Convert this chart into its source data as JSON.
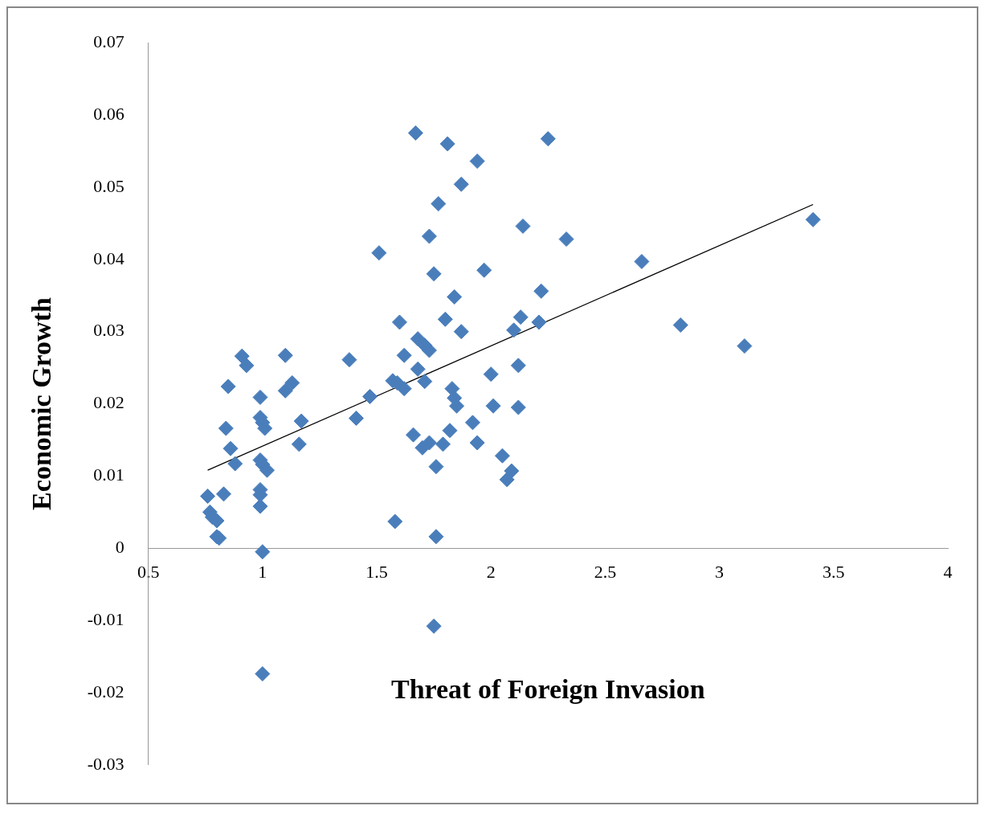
{
  "chart_data": {
    "type": "scatter",
    "xlabel": "Threat of Foreign Invasion",
    "ylabel": "Economic Growth",
    "xlim": [
      0.5,
      4
    ],
    "xticks": [
      0.5,
      1,
      1.5,
      2,
      2.5,
      3,
      3.5,
      4
    ],
    "ylim": [
      -0.03,
      0.07
    ],
    "yticks": [
      -0.03,
      -0.02,
      -0.01,
      0,
      0.01,
      0.02,
      0.03,
      0.04,
      0.05,
      0.06,
      0.07
    ],
    "grid": false,
    "legend": false,
    "series": [
      {
        "marker": "diamond",
        "color": "#4a7ebb",
        "x": [
          0.76,
          0.77,
          0.78,
          0.8,
          0.8,
          0.81,
          0.83,
          0.84,
          0.85,
          0.86,
          0.88,
          0.91,
          0.93,
          0.99,
          0.99,
          1.0,
          1.01,
          0.99,
          1.0,
          1.02,
          0.99,
          0.99,
          0.99,
          1.0,
          1.0,
          1.1,
          1.1,
          1.13,
          1.16,
          1.17,
          1.38,
          1.41,
          1.47,
          1.51,
          1.57,
          1.58,
          1.59,
          1.6,
          1.62,
          1.62,
          1.67,
          1.66,
          1.68,
          1.68,
          1.71,
          1.71,
          1.7,
          1.73,
          1.73,
          1.73,
          1.75,
          1.76,
          1.76,
          1.75,
          1.77,
          1.79,
          1.8,
          1.81,
          1.82,
          1.83,
          1.84,
          1.84,
          1.85,
          1.87,
          1.87,
          1.92,
          1.94,
          1.94,
          1.97,
          2.0,
          2.01,
          2.05,
          2.07,
          2.09,
          2.1,
          2.12,
          2.12,
          2.13,
          2.14,
          2.21,
          2.22,
          2.25,
          2.33,
          2.66,
          2.83,
          3.11,
          3.41
        ],
        "values": [
          0.0072,
          0.005,
          0.0043,
          0.0038,
          0.0016,
          0.0014,
          0.0075,
          0.0166,
          0.0224,
          0.0138,
          0.0117,
          0.0266,
          0.0253,
          0.0209,
          0.0181,
          0.0174,
          0.0166,
          0.0122,
          0.0116,
          0.0108,
          0.0081,
          0.0074,
          0.0058,
          -0.0005,
          -0.0174,
          0.0267,
          0.0218,
          0.0229,
          0.0144,
          0.0176,
          0.0261,
          0.018,
          0.021,
          0.0409,
          0.0232,
          0.0037,
          0.0229,
          0.0313,
          0.0267,
          0.0221,
          0.0575,
          0.0157,
          0.029,
          0.0248,
          0.0281,
          0.0231,
          0.0139,
          0.0274,
          0.0432,
          0.0146,
          0.038,
          0.0113,
          0.0016,
          -0.0108,
          0.0477,
          0.0144,
          0.0317,
          0.056,
          0.0163,
          0.0221,
          0.0348,
          0.0208,
          0.0197,
          0.0504,
          0.03,
          0.0174,
          0.0536,
          0.0146,
          0.0385,
          0.0241,
          0.0197,
          0.0128,
          0.0095,
          0.0107,
          0.0302,
          0.0195,
          0.0253,
          0.032,
          0.0446,
          0.0313,
          0.0356,
          0.0567,
          0.0428,
          0.0397,
          0.0309,
          0.028,
          0.0455
        ]
      },
      {
        "type": "line",
        "marker": "none",
        "color": "#000000",
        "x": [
          0.76,
          3.41
        ],
        "values": [
          0.0108,
          0.0476
        ]
      }
    ]
  }
}
